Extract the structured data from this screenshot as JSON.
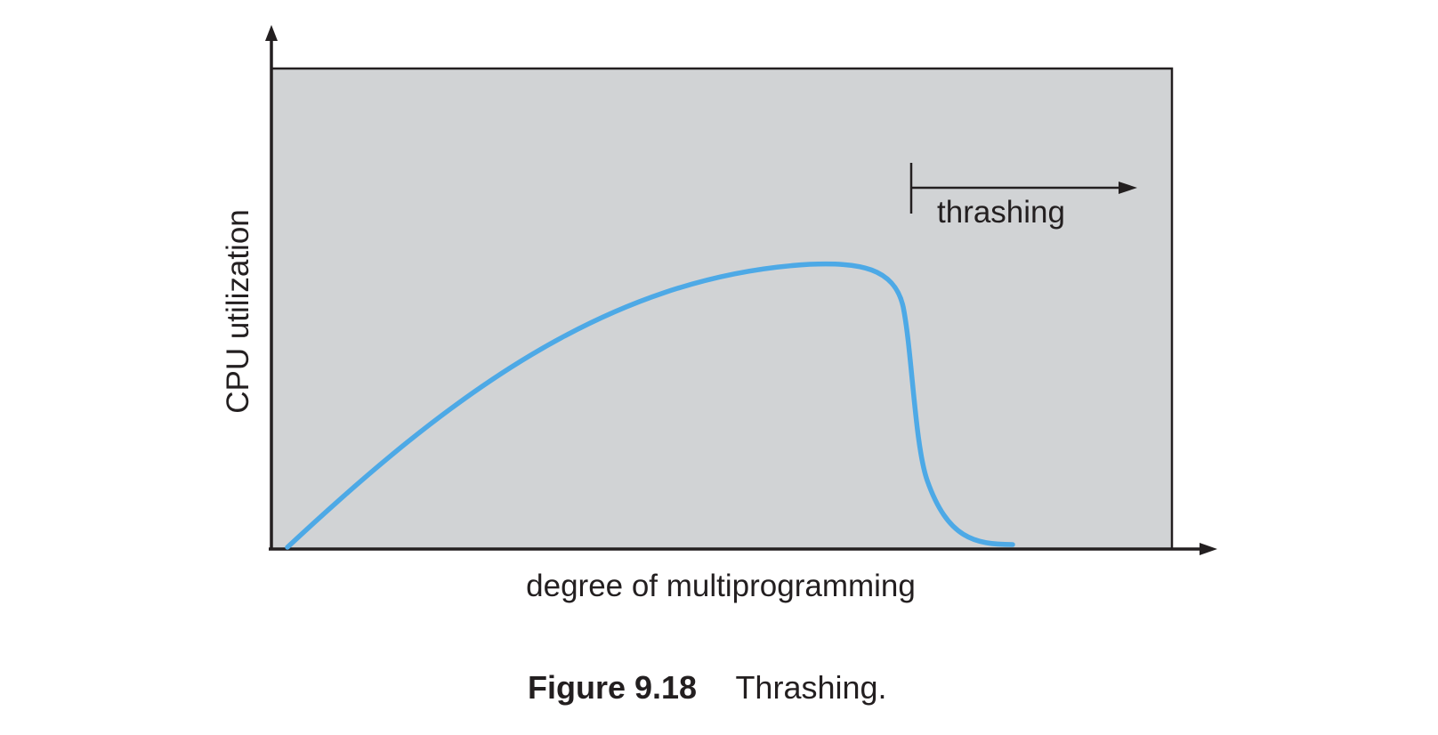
{
  "diagram": {
    "y_axis_label": "CPU utilization",
    "x_axis_label": "degree of multiprogramming",
    "region_label": "thrashing",
    "curve_color": "#4da9e6",
    "panel_fill": "#d1d3d5",
    "line_color": "#231f20"
  },
  "caption": {
    "label": "Figure 9.18",
    "text": "Thrashing."
  }
}
